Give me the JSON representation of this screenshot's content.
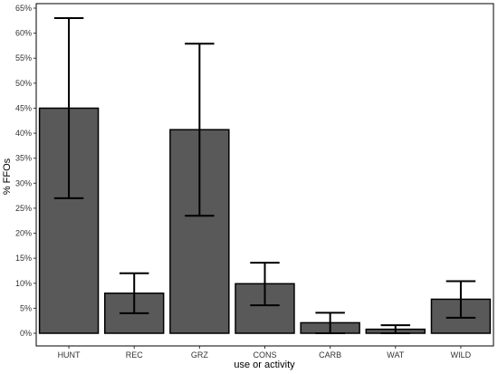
{
  "chart_data": {
    "type": "bar",
    "categories": [
      "HUNT",
      "REC",
      "GRZ",
      "CONS",
      "CARB",
      "WAT",
      "WILD"
    ],
    "values": [
      45,
      8,
      40.7,
      9.9,
      2.1,
      0.8,
      6.8
    ],
    "error_low": [
      27,
      4,
      23.5,
      5.6,
      0,
      0,
      3.1
    ],
    "error_high": [
      63,
      12,
      57.9,
      14.1,
      4.1,
      1.6,
      10.4
    ],
    "xlabel": "use or activity",
    "ylabel": "% FFOs",
    "ylim": [
      0,
      65
    ],
    "yticks": [
      0,
      5,
      10,
      15,
      20,
      25,
      30,
      35,
      40,
      45,
      50,
      55,
      60,
      65
    ],
    "ytick_labels": [
      "0%",
      "5%",
      "10%",
      "15%",
      "20%",
      "25%",
      "30%",
      "35%",
      "40%",
      "45%",
      "50%",
      "55%",
      "60%",
      "65%"
    ],
    "grid": false,
    "colors": {
      "bar_fill": "#595959",
      "bar_stroke": "#000000",
      "error_bar": "#000000",
      "panel_border": "#000000"
    }
  }
}
